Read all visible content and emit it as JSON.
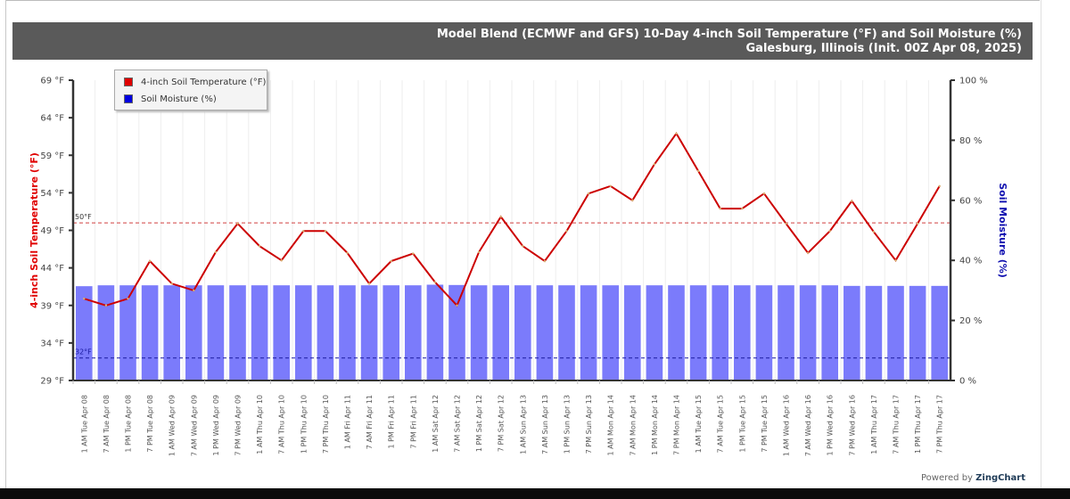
{
  "chart_title": {
    "line1": "Model Blend (ECMWF and GFS) 10-Day 4-inch Soil Temperature (°F) and Soil Moisture (%)",
    "line2": "Galesburg, Illinois (Init. 00Z Apr 08, 2025)"
  },
  "legend": {
    "items": [
      {
        "label": "4-inch Soil Temperature (°F)",
        "color": "#e00000"
      },
      {
        "label": "Soil Moisture (%)",
        "color": "#0000e0"
      }
    ]
  },
  "footer": {
    "powered_prefix": "Powered by ",
    "powered_brand": "ZingChart"
  },
  "colors": {
    "title_bg": "#5a5a5a",
    "temp_line": "#cc0000",
    "moisture_bar": "#7b7bfb",
    "ref_50": "#d04040",
    "ref_32": "#1a1aa0",
    "y_left_title": "#e00000",
    "y_right_title": "#1010b0"
  },
  "chart_data": {
    "type": "bar+line",
    "title": "Model Blend (ECMWF and GFS) 10-Day 4-inch Soil Temperature (°F) and Soil Moisture (%)",
    "subtitle": "Galesburg, Illinois (Init. 00Z Apr 08, 2025)",
    "xlabel": "",
    "ylabel_left": "4-inch Soil Temperature (°F)",
    "ylabel_right": "Soil Moisture (%)",
    "y_left": {
      "min": 29,
      "max": 69,
      "ticks": [
        29,
        34,
        39,
        44,
        49,
        54,
        59,
        64,
        69
      ],
      "tick_format": "{v} °F"
    },
    "y_right": {
      "min": 0,
      "max": 100,
      "ticks": [
        0,
        20,
        40,
        60,
        80,
        100
      ],
      "tick_format": "{v} %"
    },
    "reference_lines": [
      {
        "axis": "left",
        "value": 50,
        "label": "50°F",
        "style": "dashed",
        "color": "#d04040"
      },
      {
        "axis": "left",
        "value": 32,
        "label": "32°F",
        "style": "dashed",
        "color": "#1a1aa0"
      }
    ],
    "legend_position": "top-left",
    "grid": "vertical",
    "categories": [
      "1 AM Tue Apr 08",
      "7 AM Tue Apr 08",
      "1 PM Tue Apr 08",
      "7 PM Tue Apr 08",
      "1 AM Wed Apr 09",
      "7 AM Wed Apr 09",
      "1 PM Wed Apr 09",
      "7 PM Wed Apr 09",
      "1 AM Thu Apr 10",
      "7 AM Thu Apr 10",
      "1 PM Thu Apr 10",
      "7 PM Thu Apr 10",
      "1 AM Fri Apr 11",
      "7 AM Fri Apr 11",
      "1 PM Fri Apr 11",
      "7 PM Fri Apr 11",
      "1 AM Sat Apr 12",
      "7 AM Sat Apr 12",
      "1 PM Sat Apr 12",
      "7 PM Sat Apr 12",
      "1 AM Sun Apr 13",
      "7 AM Sun Apr 13",
      "1 PM Sun Apr 13",
      "7 PM Sun Apr 13",
      "1 AM Mon Apr 14",
      "7 AM Mon Apr 14",
      "1 PM Mon Apr 14",
      "7 PM Mon Apr 14",
      "1 AM Tue Apr 15",
      "7 AM Tue Apr 15",
      "1 PM Tue Apr 15",
      "7 PM Tue Apr 15",
      "1 AM Wed Apr 16",
      "7 AM Wed Apr 16",
      "1 PM Wed Apr 16",
      "7 PM Wed Apr 16",
      "1 AM Thu Apr 17",
      "7 AM Thu Apr 17",
      "1 PM Thu Apr 17",
      "7 PM Thu Apr 17"
    ],
    "series": [
      {
        "name": "4-inch Soil Temperature (°F)",
        "type": "line",
        "axis": "left",
        "color": "#cc0000",
        "values": [
          39.9,
          39.0,
          39.9,
          44.9,
          41.9,
          41.0,
          46.1,
          49.9,
          46.9,
          45.0,
          48.9,
          48.9,
          46.0,
          41.9,
          44.9,
          45.9,
          42.1,
          39.0,
          46.1,
          50.8,
          46.9,
          44.9,
          48.9,
          53.9,
          54.9,
          53.0,
          57.8,
          61.9,
          56.9,
          51.9,
          51.9,
          53.9,
          49.9,
          46.0,
          48.9,
          52.9,
          48.8,
          45.0,
          49.9,
          54.9
        ]
      },
      {
        "name": "Soil Moisture (%)",
        "type": "bar",
        "axis": "right",
        "color": "#7b7bfb",
        "values": [
          31.4,
          31.7,
          31.7,
          31.7,
          31.7,
          31.7,
          31.7,
          31.7,
          31.7,
          31.7,
          31.7,
          31.7,
          31.7,
          31.7,
          31.7,
          31.7,
          31.9,
          31.8,
          31.7,
          31.7,
          31.7,
          31.7,
          31.7,
          31.7,
          31.7,
          31.7,
          31.7,
          31.7,
          31.7,
          31.7,
          31.7,
          31.7,
          31.7,
          31.7,
          31.7,
          31.5,
          31.5,
          31.5,
          31.5,
          31.5
        ]
      }
    ]
  }
}
